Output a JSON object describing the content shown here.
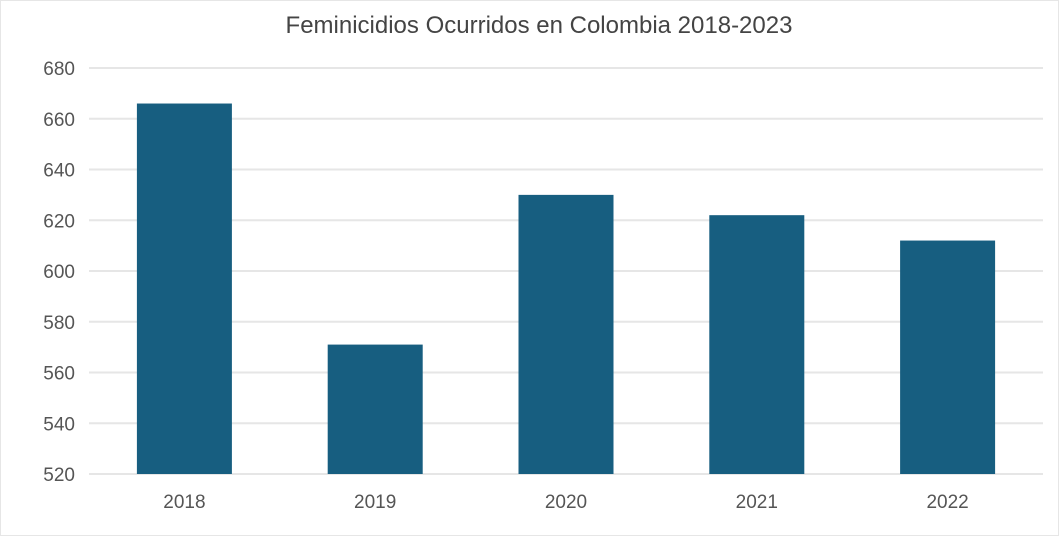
{
  "chart_data": {
    "type": "bar",
    "title": "Feminicidios Ocurridos en Colombia 2018-2023",
    "xlabel": "",
    "ylabel": "",
    "categories": [
      "2018",
      "2019",
      "2020",
      "2021",
      "2022"
    ],
    "values": [
      666,
      571,
      630,
      622,
      612
    ],
    "ylim": [
      520,
      680
    ],
    "yticks": [
      520,
      540,
      560,
      580,
      600,
      620,
      640,
      660,
      680
    ],
    "grid": true,
    "legend": "none",
    "bar_color": "#175e80",
    "grid_color": "#e6e6e6"
  }
}
